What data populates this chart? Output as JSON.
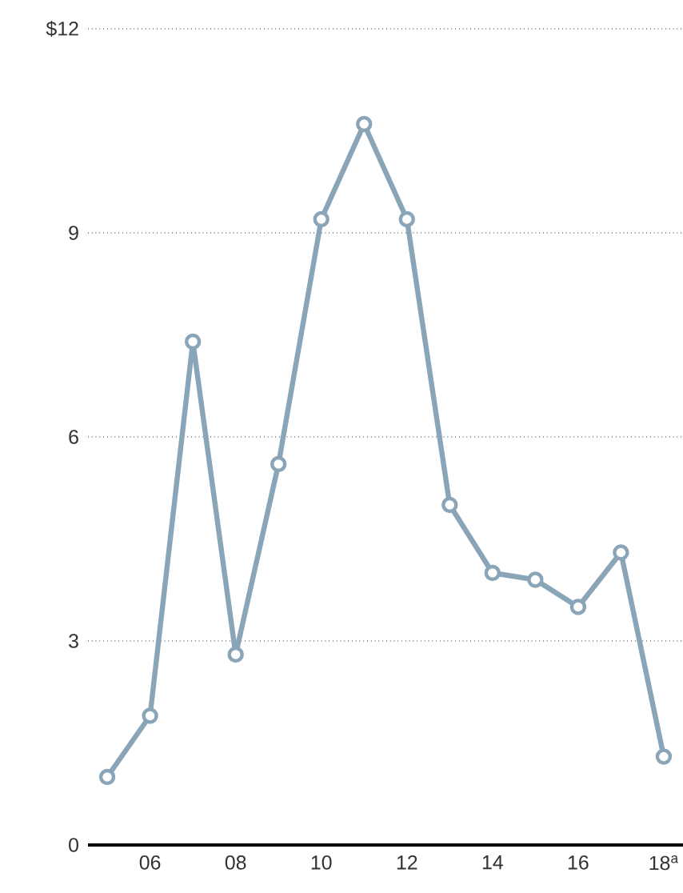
{
  "chart_data": {
    "type": "line",
    "categories": [
      null,
      "06",
      null,
      "08",
      null,
      "10",
      null,
      "12",
      null,
      "14",
      null,
      "16",
      null,
      "18$^{a}$"
    ],
    "series": [
      {
        "color": "#8aa4b8",
        "values": [
          1.0,
          1.9,
          7.4,
          2.8,
          5.6,
          9.2,
          10.6,
          9.2,
          5.0,
          4.0,
          3.9,
          3.5,
          4.3,
          1.3
        ]
      }
    ],
    "ylim": [
      0,
      12
    ],
    "yticks": [
      0,
      3,
      6,
      9,
      {
        "value": 12,
        "label": "$12"
      }
    ],
    "grid": "y",
    "marker": "circle",
    "line_style": "solid"
  }
}
